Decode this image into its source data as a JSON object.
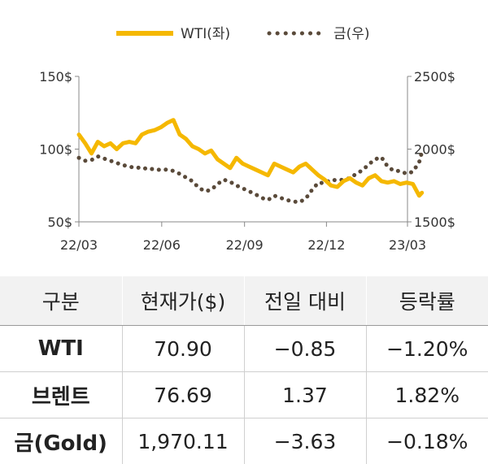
{
  "chart_data": {
    "type": "line",
    "legend": [
      "WTI(좌)",
      "금(우)"
    ],
    "legend_position": "top-center",
    "colors": {
      "wti": "#f5b800",
      "gold": "#5a4a3a"
    },
    "x_ticks": [
      "22/03",
      "22/06",
      "22/09",
      "22/12",
      "23/03"
    ],
    "y_left_ticks": [
      "150$",
      "100$",
      "50$"
    ],
    "y_right_ticks": [
      "2500$",
      "2000$",
      "1500$"
    ],
    "y_left_lim": [
      50,
      150
    ],
    "y_right_lim": [
      1500,
      2500
    ],
    "grid": false,
    "series": [
      {
        "name": "WTI(좌)",
        "axis": "left",
        "style": "solid",
        "x": [
          "22/03/01",
          "22/03/08",
          "22/03/15",
          "22/03/22",
          "22/03/29",
          "22/04/05",
          "22/04/12",
          "22/04/19",
          "22/04/26",
          "22/05/03",
          "22/05/10",
          "22/05/17",
          "22/05/24",
          "22/05/31",
          "22/06/07",
          "22/06/14",
          "22/06/21",
          "22/06/28",
          "22/07/05",
          "22/07/12",
          "22/07/19",
          "22/07/26",
          "22/08/02",
          "22/08/09",
          "22/08/16",
          "22/08/23",
          "22/08/30",
          "22/09/06",
          "22/09/13",
          "22/09/20",
          "22/09/27",
          "22/10/04",
          "22/10/11",
          "22/10/18",
          "22/10/25",
          "22/11/01",
          "22/11/08",
          "22/11/15",
          "22/11/22",
          "22/11/29",
          "22/12/06",
          "22/12/13",
          "22/12/20",
          "22/12/27",
          "23/01/03",
          "23/01/10",
          "23/01/17",
          "23/01/24",
          "23/01/31",
          "23/02/07",
          "23/02/14",
          "23/02/21",
          "23/02/28",
          "23/03/07",
          "23/03/14",
          "23/03/17"
        ],
        "values": [
          110,
          104,
          97,
          105,
          102,
          104,
          100,
          104,
          105,
          104,
          110,
          112,
          113,
          115,
          118,
          120,
          110,
          107,
          102,
          100,
          97,
          99,
          93,
          90,
          87,
          94,
          90,
          88,
          86,
          84,
          82,
          90,
          88,
          86,
          84,
          88,
          90,
          86,
          82,
          79,
          75,
          74,
          78,
          80,
          77,
          75,
          80,
          82,
          78,
          77,
          78,
          76,
          77,
          76,
          68,
          70
        ]
      },
      {
        "name": "금(우)",
        "axis": "right",
        "style": "dotted",
        "x": [
          "22/03/01",
          "22/03/08",
          "22/03/15",
          "22/03/22",
          "22/03/29",
          "22/04/05",
          "22/04/12",
          "22/04/19",
          "22/04/26",
          "22/05/03",
          "22/05/10",
          "22/05/17",
          "22/05/24",
          "22/05/31",
          "22/06/07",
          "22/06/14",
          "22/06/21",
          "22/06/28",
          "22/07/05",
          "22/07/12",
          "22/07/19",
          "22/07/26",
          "22/08/02",
          "22/08/09",
          "22/08/16",
          "22/08/23",
          "22/08/30",
          "22/09/06",
          "22/09/13",
          "22/09/20",
          "22/09/27",
          "22/10/04",
          "22/10/11",
          "22/10/18",
          "22/10/25",
          "22/11/01",
          "22/11/08",
          "22/11/15",
          "22/11/22",
          "22/11/29",
          "22/12/06",
          "22/12/13",
          "22/12/20",
          "22/12/27",
          "23/01/03",
          "23/01/10",
          "23/01/17",
          "23/01/24",
          "23/01/31",
          "23/02/07",
          "23/02/14",
          "23/02/21",
          "23/02/28",
          "23/03/07",
          "23/03/14",
          "23/03/17"
        ],
        "values": [
          1940,
          1920,
          1925,
          1950,
          1935,
          1920,
          1905,
          1890,
          1880,
          1870,
          1875,
          1860,
          1865,
          1855,
          1860,
          1850,
          1830,
          1805,
          1780,
          1735,
          1710,
          1720,
          1760,
          1790,
          1775,
          1750,
          1730,
          1710,
          1690,
          1665,
          1650,
          1680,
          1665,
          1650,
          1640,
          1635,
          1660,
          1720,
          1770,
          1765,
          1790,
          1785,
          1790,
          1800,
          1830,
          1855,
          1895,
          1930,
          1945,
          1880,
          1850,
          1850,
          1830,
          1845,
          1910,
          1980
        ]
      }
    ]
  },
  "table": {
    "headers": [
      "구분",
      "현재가($)",
      "전일 대비",
      "등락률"
    ],
    "rows": [
      [
        "WTI",
        "70.90",
        "−0.85",
        "−1.20%"
      ],
      [
        "브렌트",
        "76.69",
        "1.37",
        "1.82%"
      ],
      [
        "금(Gold)",
        "1,970.11",
        "−3.63",
        "−0.18%"
      ]
    ]
  }
}
